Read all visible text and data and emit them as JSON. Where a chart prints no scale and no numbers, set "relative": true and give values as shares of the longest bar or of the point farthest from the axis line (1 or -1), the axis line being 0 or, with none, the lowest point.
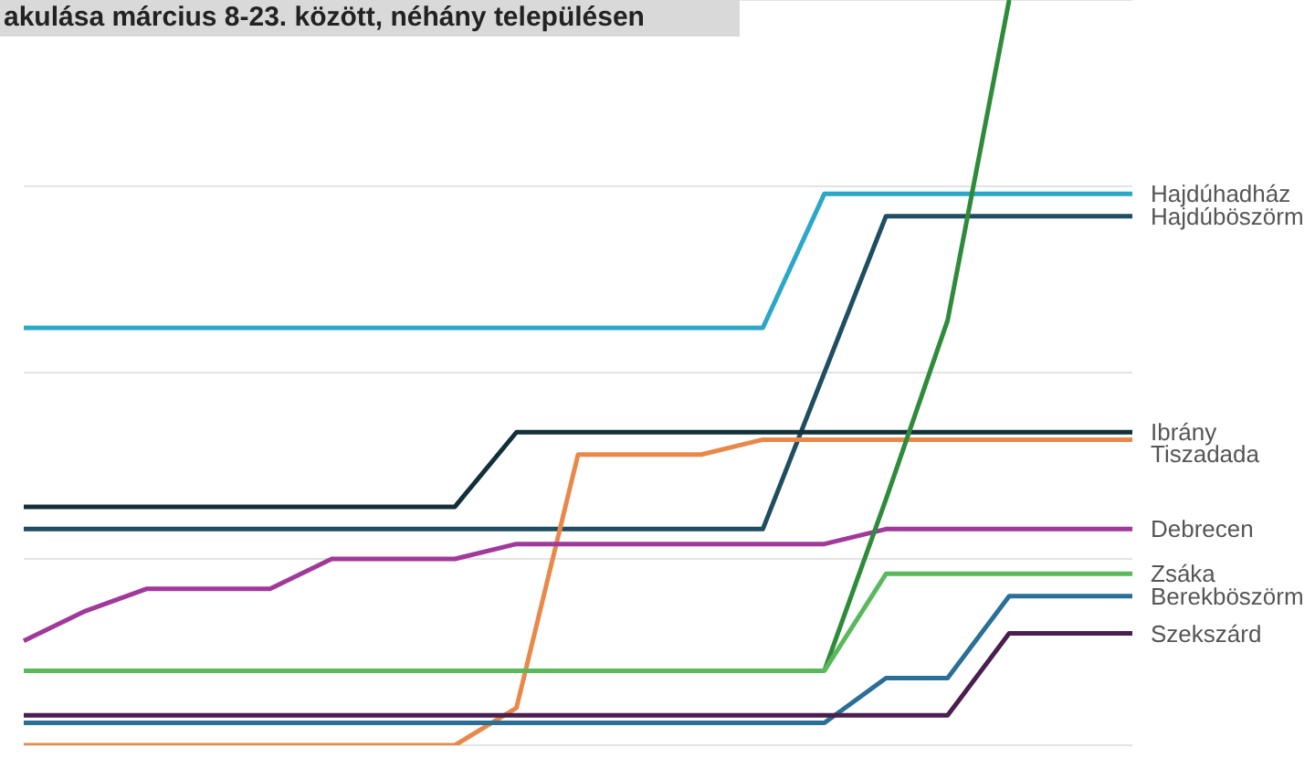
{
  "chart_data": {
    "type": "line",
    "title": "akulása március 8-23. között, néhány településen",
    "relative": true,
    "grid": "y",
    "categories": [
      null,
      null,
      null,
      null,
      null,
      null,
      null,
      null,
      null,
      null,
      null,
      null,
      null,
      null,
      null,
      null,
      null,
      null,
      null
    ],
    "series": [
      {
        "name": "Hajdúhadház",
        "color": "#2ba7c9",
        "values": [
          0.56,
          0.56,
          0.56,
          0.56,
          0.56,
          0.56,
          0.56,
          0.56,
          0.56,
          0.56,
          0.56,
          0.56,
          0.56,
          0.74,
          0.74,
          0.74,
          0.74,
          0.74,
          0.74
        ]
      },
      {
        "name": "Hajdúböszörm",
        "color": "#1f4e63",
        "values": [
          0.29,
          0.29,
          0.29,
          0.29,
          0.29,
          0.29,
          0.29,
          0.29,
          0.29,
          0.29,
          0.29,
          0.29,
          0.29,
          0.5,
          0.71,
          0.71,
          0.71,
          0.71,
          0.71
        ]
      },
      {
        "name": "Ibrány",
        "color": "#12303a",
        "values": [
          0.32,
          0.32,
          0.32,
          0.32,
          0.32,
          0.32,
          0.32,
          0.32,
          0.42,
          0.42,
          0.42,
          0.42,
          0.42,
          0.42,
          0.42,
          0.42,
          0.42,
          0.42,
          0.42
        ]
      },
      {
        "name": "Tiszadada",
        "color": "#e8894a",
        "values": [
          0,
          0,
          0,
          0,
          0,
          0,
          0,
          0,
          0.05,
          0.39,
          0.39,
          0.39,
          0.41,
          0.41,
          0.41,
          0.41,
          0.41,
          0.41,
          0.41
        ]
      },
      {
        "name": "Debrecen",
        "color": "#a0399a",
        "values": [
          0.14,
          0.18,
          0.21,
          0.21,
          0.21,
          0.25,
          0.25,
          0.25,
          0.27,
          0.27,
          0.27,
          0.27,
          0.27,
          0.27,
          0.29,
          0.29,
          0.29,
          0.29,
          0.29
        ]
      },
      {
        "color": "#2e8b3a",
        "values": [
          null,
          null,
          null,
          null,
          null,
          null,
          null,
          null,
          null,
          null,
          null,
          null,
          null,
          0.1,
          0.33,
          0.57,
          1,
          null,
          null
        ]
      },
      {
        "name": "Zsáka",
        "color": "#5cb85c",
        "values": [
          0.1,
          0.1,
          0.1,
          0.1,
          0.1,
          0.1,
          0.1,
          0.1,
          0.1,
          0.1,
          0.1,
          0.1,
          0.1,
          0.1,
          0.23,
          0.23,
          0.23,
          0.23,
          0.23
        ]
      },
      {
        "name": "Berekböszörm",
        "color": "#2a6f97",
        "values": [
          0.03,
          0.03,
          0.03,
          0.03,
          0.03,
          0.03,
          0.03,
          0.03,
          0.03,
          0.03,
          0.03,
          0.03,
          0.03,
          0.03,
          0.09,
          0.09,
          0.2,
          0.2,
          0.2
        ]
      },
      {
        "name": "Szekszárd",
        "color": "#4a1f4f",
        "values": [
          0.04,
          0.04,
          0.04,
          0.04,
          0.04,
          0.04,
          0.04,
          0.04,
          0.04,
          0.04,
          0.04,
          0.04,
          0.04,
          0.04,
          0.04,
          0.04,
          0.15,
          0.15,
          0.15
        ]
      }
    ]
  }
}
